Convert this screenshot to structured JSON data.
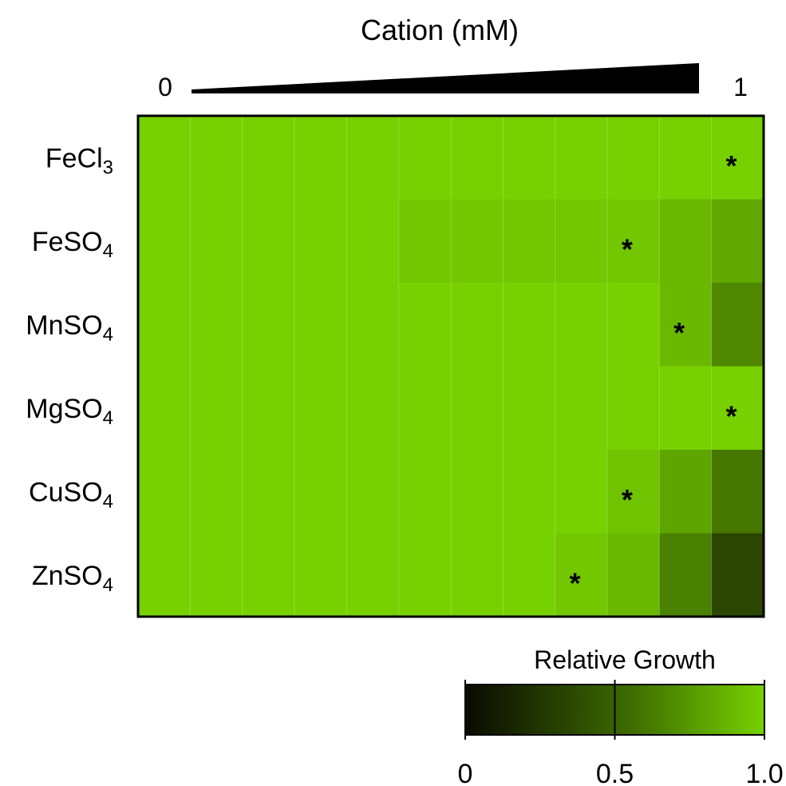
{
  "chart_data": {
    "type": "heatmap",
    "title": "Cation (mM)",
    "x_start_label": "0",
    "x_end_label": "1",
    "columns": 12,
    "rows": [
      {
        "name": "FeCl",
        "subscript": "3",
        "values": [
          1,
          1,
          1,
          1,
          1,
          1,
          1,
          1,
          1,
          1,
          1,
          1
        ],
        "significance_col": 11
      },
      {
        "name": "FeSO",
        "subscript": "4",
        "values": [
          1,
          1,
          1,
          1,
          1,
          0.95,
          0.95,
          0.95,
          0.95,
          0.95,
          0.88,
          0.8
        ],
        "significance_col": 9
      },
      {
        "name": "MnSO",
        "subscript": "4",
        "values": [
          1,
          1,
          1,
          1,
          1,
          1,
          1,
          1,
          1,
          1,
          0.88,
          0.63
        ],
        "significance_col": 10
      },
      {
        "name": "MgSO",
        "subscript": "4",
        "values": [
          1,
          1,
          1,
          1,
          1,
          1,
          1,
          1,
          1,
          1,
          1,
          1
        ],
        "significance_col": 11
      },
      {
        "name": "CuSO",
        "subscript": "4",
        "values": [
          1,
          1,
          1,
          1,
          1,
          1,
          1,
          1,
          1,
          0.93,
          0.78,
          0.55
        ],
        "significance_col": 9
      },
      {
        "name": "ZnSO",
        "subscript": "4",
        "values": [
          1,
          1,
          1,
          1,
          1,
          1,
          1,
          1,
          0.95,
          0.88,
          0.6,
          0.3
        ],
        "significance_col": 8
      }
    ],
    "significance_marker": "*",
    "colorbar": {
      "label": "Relative Growth",
      "ticks": [
        "0",
        "0.5",
        "1.0"
      ],
      "tick_values": [
        0,
        0.5,
        1.0
      ],
      "min_color": "#0a0a00",
      "max_color": "#77d100"
    },
    "colors": {
      "max_green": "#77d100",
      "min_black": "#0a0a00"
    }
  }
}
